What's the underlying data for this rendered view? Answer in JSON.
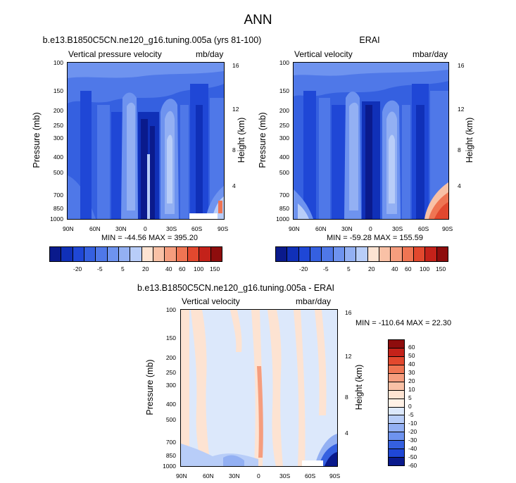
{
  "title": "ANN",
  "chart_data": [
    {
      "type": "heatmap",
      "title": "b.e13.B1850C5CN.ne120_g16.tuning.005a (yrs 81-100)",
      "left_subtitle": "Vertical pressure velocity",
      "right_subtitle": "mb/day",
      "ylabel": "Pressure (mb)",
      "y2label": "Height (km)",
      "x_ticks": [
        "90N",
        "60N",
        "30N",
        "0",
        "30S",
        "60S",
        "90S"
      ],
      "y_ticks": [
        "100",
        "150",
        "200",
        "250",
        "300",
        "400",
        "500",
        "700",
        "850",
        "1000"
      ],
      "y2_ticks": [
        "16",
        "12",
        "8",
        "4"
      ],
      "stats": "MIN = -44.56   MAX = 395.20",
      "colorbar_labels": [
        "-20",
        "-5",
        "5",
        "20",
        "40",
        "60",
        "100",
        "150"
      ]
    },
    {
      "type": "heatmap",
      "title": "ERAI",
      "left_subtitle": "Vertical velocity",
      "right_subtitle": "mbar/day",
      "ylabel": "Pressure (mb)",
      "y2label": "Height (km)",
      "x_ticks": [
        "90N",
        "60N",
        "30N",
        "0",
        "30S",
        "60S",
        "90S"
      ],
      "y_ticks": [
        "100",
        "150",
        "200",
        "250",
        "300",
        "400",
        "500",
        "700",
        "850",
        "1000"
      ],
      "y2_ticks": [
        "16",
        "12",
        "8",
        "4"
      ],
      "stats": "MIN = -59.28   MAX = 155.59",
      "colorbar_labels": [
        "-20",
        "-5",
        "5",
        "20",
        "40",
        "60",
        "100",
        "150"
      ]
    },
    {
      "type": "heatmap",
      "title": "b.e13.B1850C5CN.ne120_g16.tuning.005a - ERAI",
      "left_subtitle": "Vertical velocity",
      "right_subtitle": "mbar/day",
      "ylabel": "Pressure (mb)",
      "y2label": "Height (km)",
      "x_ticks": [
        "90N",
        "60N",
        "30N",
        "0",
        "30S",
        "60S",
        "90S"
      ],
      "y_ticks": [
        "100",
        "150",
        "200",
        "250",
        "300",
        "400",
        "500",
        "700",
        "850",
        "1000"
      ],
      "y2_ticks": [
        "16",
        "12",
        "8",
        "4"
      ],
      "stats": "MIN = -110.64  MAX =  22.30",
      "colorbar_labels": [
        "60",
        "50",
        "40",
        "30",
        "20",
        "10",
        "5",
        "0",
        "-5",
        "-10",
        "-20",
        "-30",
        "-40",
        "-50",
        "-60"
      ]
    }
  ],
  "colors": {
    "field_scale": [
      "#0a1a8c",
      "#1030b8",
      "#1f47d6",
      "#3560e0",
      "#4f78e8",
      "#6e93ef",
      "#93b0f3",
      "#b8cdf8",
      "#fde3d2",
      "#f9c1a6",
      "#f59d7e",
      "#ef7553",
      "#e2482e",
      "#c4221a",
      "#8e0d0d"
    ],
    "diff_scale": [
      "#8e0d0d",
      "#c4221a",
      "#e2482e",
      "#ef7553",
      "#f59d7e",
      "#f9c1a6",
      "#fde3d2",
      "#fff1e6",
      "#dce8fb",
      "#b8cdf8",
      "#93b0f3",
      "#6e93ef",
      "#3560e0",
      "#1f47d6",
      "#0a1a8c"
    ]
  }
}
